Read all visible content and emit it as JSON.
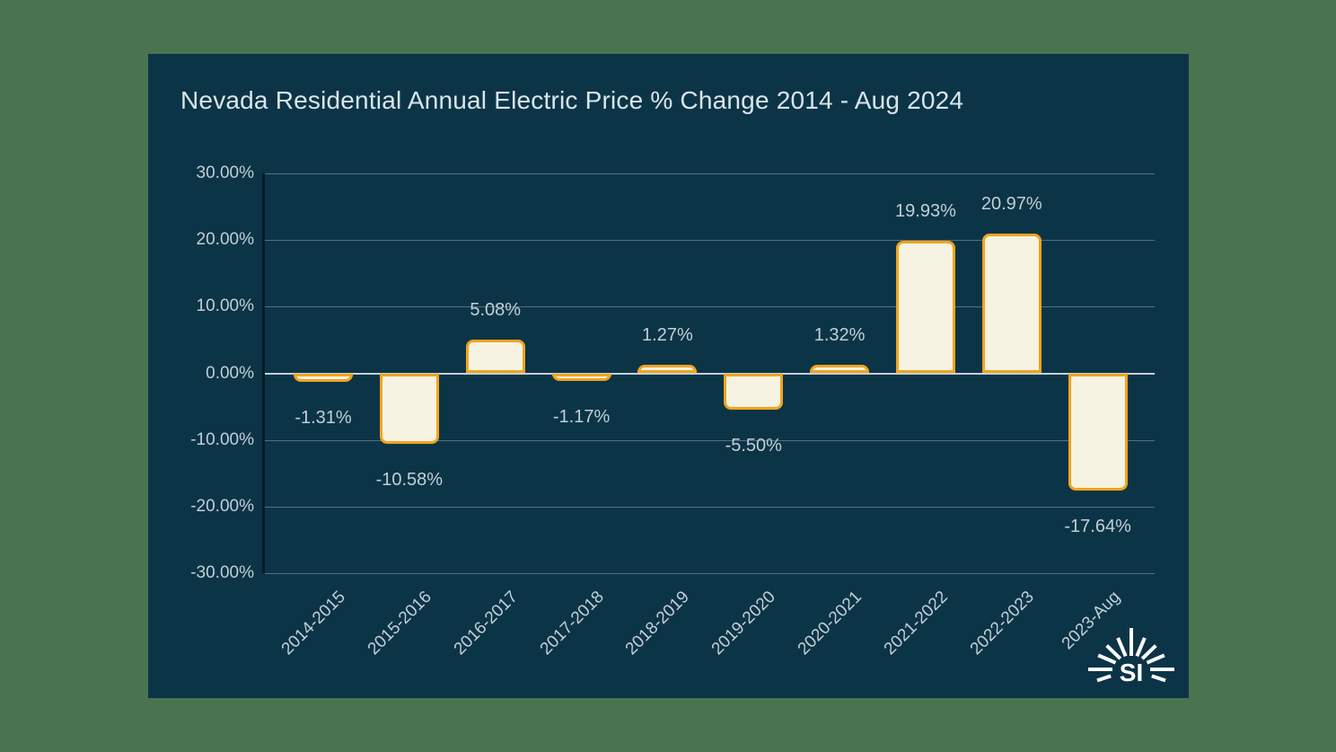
{
  "theme": {
    "page_background": "#4a7350",
    "panel_background": "#0c3447",
    "title_color": "#d9e5ea",
    "label_color": "#c2cfd6",
    "grid_color": "#53707f",
    "zero_line_color": "#c3d0d7",
    "axis_line_color": "#0a1b26",
    "bar_fill": "#f7f3e2",
    "bar_border": "#f0a41d",
    "logo_color": "#ffffff"
  },
  "logo": {
    "text": "SI"
  },
  "chart_data": {
    "type": "bar",
    "title": "Nevada Residential Annual Electric Price % Change 2014 - Aug 2024",
    "categories": [
      "2014-2015",
      "2015-2016",
      "2016-2017",
      "2017-2018",
      "2018-2019",
      "2019-2020",
      "2020-2021",
      "2021-2022",
      "2022-2023",
      "2023-Aug"
    ],
    "values": [
      -1.31,
      -10.58,
      5.08,
      -1.17,
      1.27,
      -5.5,
      1.32,
      19.93,
      20.97,
      -17.64
    ],
    "data_labels": [
      "-1.31%",
      "-10.58%",
      "5.08%",
      "-1.17%",
      "1.27%",
      "-5.50%",
      "1.32%",
      "19.93%",
      "20.97%",
      "-17.64%"
    ],
    "y_ticks": [
      30,
      20,
      10,
      0,
      -10,
      -20,
      -30
    ],
    "y_tick_labels": [
      "30.00%",
      "20.00%",
      "10.00%",
      "0.00%",
      "-10.00%",
      "-20.00%",
      "-30.00%"
    ],
    "xlabel": "",
    "ylabel": "",
    "ylim": [
      -30,
      30
    ],
    "grid": true,
    "legend": "none"
  }
}
